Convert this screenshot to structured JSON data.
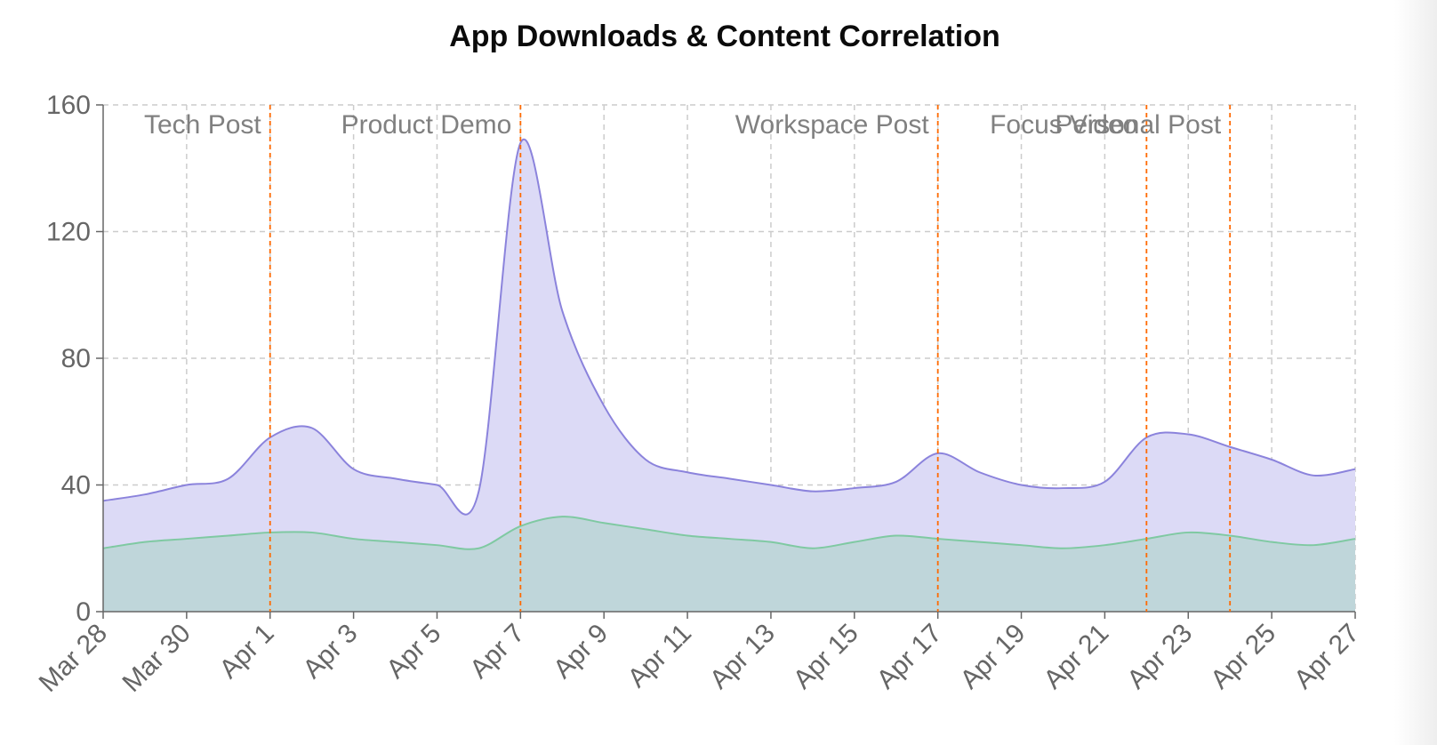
{
  "chart_data": {
    "type": "area",
    "title": "App Downloads & Content Correlation",
    "xlabel": "",
    "ylabel": "",
    "x": [
      "Mar 28",
      "Mar 29",
      "Mar 30",
      "Mar 31",
      "Apr 1",
      "Apr 2",
      "Apr 3",
      "Apr 4",
      "Apr 5",
      "Apr 6",
      "Apr 7",
      "Apr 8",
      "Apr 9",
      "Apr 10",
      "Apr 11",
      "Apr 12",
      "Apr 13",
      "Apr 14",
      "Apr 15",
      "Apr 16",
      "Apr 17",
      "Apr 18",
      "Apr 19",
      "Apr 20",
      "Apr 21",
      "Apr 22",
      "Apr 23",
      "Apr 24",
      "Apr 25",
      "Apr 26",
      "Apr 27"
    ],
    "x_tick_labels": [
      "Mar 28",
      "Mar 30",
      "Apr 1",
      "Apr 3",
      "Apr 5",
      "Apr 7",
      "Apr 9",
      "Apr 11",
      "Apr 13",
      "Apr 15",
      "Apr 17",
      "Apr 19",
      "Apr 21",
      "Apr 23",
      "Apr 25",
      "Apr 27"
    ],
    "ylim": [
      0,
      160
    ],
    "y_ticks": [
      0,
      40,
      80,
      120,
      160
    ],
    "grid": true,
    "legend": "none",
    "series": [
      {
        "values": [
          35,
          37,
          40,
          42,
          55,
          58,
          45,
          42,
          40,
          38,
          148,
          95,
          65,
          48,
          44,
          42,
          40,
          38,
          39,
          41,
          50,
          44,
          40,
          39,
          41,
          55,
          56,
          52,
          48,
          43,
          45
        ],
        "stroke": "#8b83dc",
        "fill": "#dcdaf6"
      },
      {
        "values": [
          20,
          22,
          23,
          24,
          25,
          25,
          23,
          22,
          21,
          20,
          27,
          30,
          28,
          26,
          24,
          23,
          22,
          20,
          22,
          24,
          23,
          22,
          21,
          20,
          21,
          23,
          25,
          24,
          22,
          21,
          23
        ],
        "stroke": "#7fc9a2",
        "fill": "#bfd6da"
      }
    ],
    "annotations": [
      {
        "x": "Apr 1",
        "label": "Tech Post"
      },
      {
        "x": "Apr 7",
        "label": "Product Demo"
      },
      {
        "x": "Apr 17",
        "label": "Workspace Post"
      },
      {
        "x": "Apr 22",
        "label": "Focus Video"
      },
      {
        "x": "Apr 24",
        "label": "Personal Post"
      }
    ],
    "annotation_color": "#ff6a00"
  }
}
